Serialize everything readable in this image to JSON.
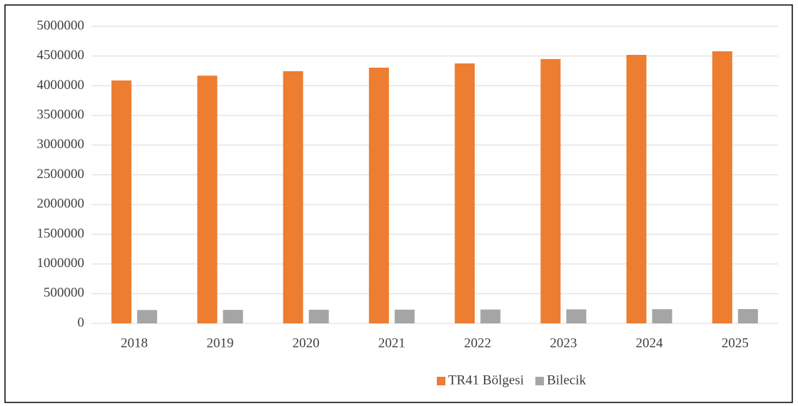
{
  "chart_data": {
    "type": "bar",
    "categories": [
      "2018",
      "2019",
      "2020",
      "2021",
      "2022",
      "2023",
      "2024",
      "2025"
    ],
    "series": [
      {
        "name": "TR41 Bölgesi",
        "color": "#ed7d31",
        "values": [
          4089000,
          4170000,
          4245000,
          4305000,
          4376000,
          4450000,
          4520000,
          4580000
        ]
      },
      {
        "name": "Bilecik",
        "color": "#a5a5a5",
        "values": [
          225000,
          227000,
          229000,
          231000,
          233000,
          236000,
          238000,
          241000
        ]
      }
    ],
    "ylim": [
      0,
      5000000
    ],
    "yticks": [
      0,
      500000,
      1000000,
      1500000,
      2000000,
      2500000,
      3000000,
      3500000,
      4000000,
      4500000,
      5000000
    ],
    "grid": true,
    "legend": "bottom"
  }
}
